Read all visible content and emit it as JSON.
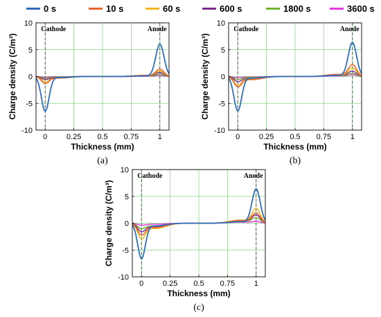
{
  "legend": [
    {
      "label": "0 s",
      "color": "#2f6eba"
    },
    {
      "label": "10 s",
      "color": "#e8652b"
    },
    {
      "label": "60 s",
      "color": "#f0b51c"
    },
    {
      "label": "600 s",
      "color": "#7b2d8e"
    },
    {
      "label": "1800 s",
      "color": "#6fb22b"
    },
    {
      "label": "3600 s",
      "color": "#e63ae0"
    }
  ],
  "chart_data": [
    {
      "type": "line",
      "panel_label": "(a)",
      "xlabel": "Thickness (mm)",
      "ylabel": "Charge density (C/m³)",
      "xlim": [
        -0.08,
        1.08
      ],
      "ylim": [
        -10,
        10
      ],
      "xticks": [
        0,
        0.25,
        0.5,
        0.75,
        1
      ],
      "xtick_labels": [
        "0",
        "0.25",
        "0.5",
        "0.75",
        "1"
      ],
      "yticks": [
        -10,
        -5,
        0,
        5,
        10
      ],
      "ytick_labels": [
        "-10",
        "-5",
        "0",
        "5",
        "10"
      ],
      "grid": true,
      "annotations": [
        {
          "text": "Cathode",
          "x": 0
        },
        {
          "text": "Anode",
          "x": 1
        }
      ],
      "series": [
        {
          "color": "#2f6eba",
          "cathode_peak": -6.4,
          "anode_peak": 6.0,
          "cathode_tail": -0.2,
          "anode_tail": 0.1
        },
        {
          "color": "#e8652b",
          "cathode_peak": -1.2,
          "anode_peak": 1.3,
          "cathode_tail": -0.3,
          "anode_tail": 0.2
        },
        {
          "color": "#f0b51c",
          "cathode_peak": -0.9,
          "anode_peak": 1.0,
          "cathode_tail": -0.3,
          "anode_tail": 0.2
        },
        {
          "color": "#7b2d8e",
          "cathode_peak": -0.5,
          "anode_peak": 0.7,
          "cathode_tail": -0.2,
          "anode_tail": 0.2
        },
        {
          "color": "#6fb22b",
          "cathode_peak": -0.3,
          "anode_peak": 0.4,
          "cathode_tail": -0.1,
          "anode_tail": 0.1
        },
        {
          "color": "#e63ae0",
          "cathode_peak": -0.15,
          "anode_peak": 0.2,
          "cathode_tail": -0.05,
          "anode_tail": 0.05
        }
      ]
    },
    {
      "type": "line",
      "panel_label": "(b)",
      "xlabel": "Thickness (mm)",
      "ylabel": "Charge density (C/m³)",
      "xlim": [
        -0.08,
        1.08
      ],
      "ylim": [
        -10,
        10
      ],
      "xticks": [
        0,
        0.25,
        0.5,
        0.75,
        1
      ],
      "xtick_labels": [
        "0",
        "0.25",
        "0.5",
        "0.75",
        "1"
      ],
      "yticks": [
        -10,
        -5,
        0,
        5,
        10
      ],
      "ytick_labels": [
        "-10",
        "-5",
        "0",
        "5",
        "10"
      ],
      "grid": true,
      "annotations": [
        {
          "text": "Cathode",
          "x": 0
        },
        {
          "text": "Anode",
          "x": 1
        }
      ],
      "series": [
        {
          "color": "#2f6eba",
          "cathode_peak": -6.3,
          "anode_peak": 6.3,
          "cathode_tail": -0.3,
          "anode_tail": 0.2
        },
        {
          "color": "#e8652b",
          "cathode_peak": -1.7,
          "anode_peak": 2.1,
          "cathode_tail": -0.6,
          "anode_tail": 0.4
        },
        {
          "color": "#f0b51c",
          "cathode_peak": -1.4,
          "anode_peak": 1.5,
          "cathode_tail": -0.5,
          "anode_tail": 0.3
        },
        {
          "color": "#7b2d8e",
          "cathode_peak": -0.8,
          "anode_peak": 0.9,
          "cathode_tail": -0.4,
          "anode_tail": 0.3
        },
        {
          "color": "#6fb22b",
          "cathode_peak": -0.5,
          "anode_peak": 0.5,
          "cathode_tail": -0.2,
          "anode_tail": 0.2
        },
        {
          "color": "#e63ae0",
          "cathode_peak": -0.2,
          "anode_peak": 0.3,
          "cathode_tail": -0.1,
          "anode_tail": 0.1
        }
      ]
    },
    {
      "type": "line",
      "panel_label": "(c)",
      "xlabel": "Thickness (mm)",
      "ylabel": "Charge density (C/m³)",
      "xlim": [
        -0.08,
        1.08
      ],
      "ylim": [
        -10,
        10
      ],
      "xticks": [
        0,
        0.25,
        0.5,
        0.75,
        1
      ],
      "xtick_labels": [
        "0",
        "0.25",
        "0.5",
        "0.75",
        "1"
      ],
      "yticks": [
        -10,
        -5,
        0,
        5,
        10
      ],
      "ytick_labels": [
        "-10",
        "-5",
        "0",
        "5",
        "10"
      ],
      "grid": true,
      "annotations": [
        {
          "text": "Cathode",
          "x": 0
        },
        {
          "text": "Anode",
          "x": 1
        }
      ],
      "series": [
        {
          "color": "#2f6eba",
          "cathode_peak": -6.4,
          "anode_peak": 6.3,
          "cathode_tail": -0.5,
          "anode_tail": 0.3
        },
        {
          "color": "#e8652b",
          "cathode_peak": -1.9,
          "anode_peak": 1.8,
          "cathode_tail": -0.8,
          "anode_tail": 0.5
        },
        {
          "color": "#f0b51c",
          "cathode_peak": -2.5,
          "anode_peak": 2.6,
          "cathode_tail": -1.0,
          "anode_tail": 0.6
        },
        {
          "color": "#7b2d8e",
          "cathode_peak": -1.3,
          "anode_peak": 1.4,
          "cathode_tail": -0.7,
          "anode_tail": 0.5
        },
        {
          "color": "#6fb22b",
          "cathode_peak": -0.8,
          "anode_peak": 0.9,
          "cathode_tail": -0.5,
          "anode_tail": 0.4
        },
        {
          "color": "#e63ae0",
          "cathode_peak": -0.3,
          "anode_peak": 0.3,
          "cathode_tail": -0.2,
          "anode_tail": 0.2
        }
      ]
    }
  ]
}
